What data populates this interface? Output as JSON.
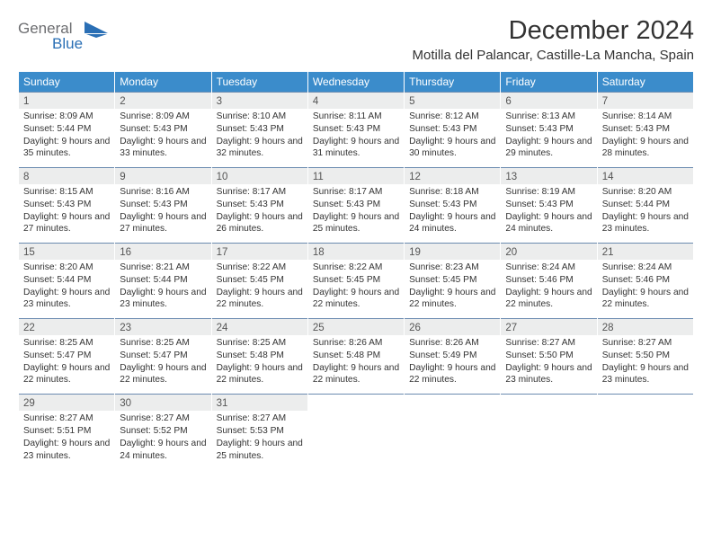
{
  "logo": {
    "text_top": "General",
    "text_bottom": "Blue",
    "gray": "#6d6e71",
    "blue": "#2a6fb5"
  },
  "title": "December 2024",
  "location": "Motilla del Palancar, Castille-La Mancha, Spain",
  "colors": {
    "header_bg": "#3b8ccb",
    "header_fg": "#ffffff",
    "daynum_bg": "#eceded",
    "row_divider": "#6b8bb0",
    "text": "#333333",
    "page_bg": "#ffffff"
  },
  "weekdays": [
    "Sunday",
    "Monday",
    "Tuesday",
    "Wednesday",
    "Thursday",
    "Friday",
    "Saturday"
  ],
  "weeks": [
    [
      {
        "n": "1",
        "sr": "8:09 AM",
        "ss": "5:44 PM",
        "dl": "9 hours and 35 minutes."
      },
      {
        "n": "2",
        "sr": "8:09 AM",
        "ss": "5:43 PM",
        "dl": "9 hours and 33 minutes."
      },
      {
        "n": "3",
        "sr": "8:10 AM",
        "ss": "5:43 PM",
        "dl": "9 hours and 32 minutes."
      },
      {
        "n": "4",
        "sr": "8:11 AM",
        "ss": "5:43 PM",
        "dl": "9 hours and 31 minutes."
      },
      {
        "n": "5",
        "sr": "8:12 AM",
        "ss": "5:43 PM",
        "dl": "9 hours and 30 minutes."
      },
      {
        "n": "6",
        "sr": "8:13 AM",
        "ss": "5:43 PM",
        "dl": "9 hours and 29 minutes."
      },
      {
        "n": "7",
        "sr": "8:14 AM",
        "ss": "5:43 PM",
        "dl": "9 hours and 28 minutes."
      }
    ],
    [
      {
        "n": "8",
        "sr": "8:15 AM",
        "ss": "5:43 PM",
        "dl": "9 hours and 27 minutes."
      },
      {
        "n": "9",
        "sr": "8:16 AM",
        "ss": "5:43 PM",
        "dl": "9 hours and 27 minutes."
      },
      {
        "n": "10",
        "sr": "8:17 AM",
        "ss": "5:43 PM",
        "dl": "9 hours and 26 minutes."
      },
      {
        "n": "11",
        "sr": "8:17 AM",
        "ss": "5:43 PM",
        "dl": "9 hours and 25 minutes."
      },
      {
        "n": "12",
        "sr": "8:18 AM",
        "ss": "5:43 PM",
        "dl": "9 hours and 24 minutes."
      },
      {
        "n": "13",
        "sr": "8:19 AM",
        "ss": "5:43 PM",
        "dl": "9 hours and 24 minutes."
      },
      {
        "n": "14",
        "sr": "8:20 AM",
        "ss": "5:44 PM",
        "dl": "9 hours and 23 minutes."
      }
    ],
    [
      {
        "n": "15",
        "sr": "8:20 AM",
        "ss": "5:44 PM",
        "dl": "9 hours and 23 minutes."
      },
      {
        "n": "16",
        "sr": "8:21 AM",
        "ss": "5:44 PM",
        "dl": "9 hours and 23 minutes."
      },
      {
        "n": "17",
        "sr": "8:22 AM",
        "ss": "5:45 PM",
        "dl": "9 hours and 22 minutes."
      },
      {
        "n": "18",
        "sr": "8:22 AM",
        "ss": "5:45 PM",
        "dl": "9 hours and 22 minutes."
      },
      {
        "n": "19",
        "sr": "8:23 AM",
        "ss": "5:45 PM",
        "dl": "9 hours and 22 minutes."
      },
      {
        "n": "20",
        "sr": "8:24 AM",
        "ss": "5:46 PM",
        "dl": "9 hours and 22 minutes."
      },
      {
        "n": "21",
        "sr": "8:24 AM",
        "ss": "5:46 PM",
        "dl": "9 hours and 22 minutes."
      }
    ],
    [
      {
        "n": "22",
        "sr": "8:25 AM",
        "ss": "5:47 PM",
        "dl": "9 hours and 22 minutes."
      },
      {
        "n": "23",
        "sr": "8:25 AM",
        "ss": "5:47 PM",
        "dl": "9 hours and 22 minutes."
      },
      {
        "n": "24",
        "sr": "8:25 AM",
        "ss": "5:48 PM",
        "dl": "9 hours and 22 minutes."
      },
      {
        "n": "25",
        "sr": "8:26 AM",
        "ss": "5:48 PM",
        "dl": "9 hours and 22 minutes."
      },
      {
        "n": "26",
        "sr": "8:26 AM",
        "ss": "5:49 PM",
        "dl": "9 hours and 22 minutes."
      },
      {
        "n": "27",
        "sr": "8:27 AM",
        "ss": "5:50 PM",
        "dl": "9 hours and 23 minutes."
      },
      {
        "n": "28",
        "sr": "8:27 AM",
        "ss": "5:50 PM",
        "dl": "9 hours and 23 minutes."
      }
    ],
    [
      {
        "n": "29",
        "sr": "8:27 AM",
        "ss": "5:51 PM",
        "dl": "9 hours and 23 minutes."
      },
      {
        "n": "30",
        "sr": "8:27 AM",
        "ss": "5:52 PM",
        "dl": "9 hours and 24 minutes."
      },
      {
        "n": "31",
        "sr": "8:27 AM",
        "ss": "5:53 PM",
        "dl": "9 hours and 25 minutes."
      },
      null,
      null,
      null,
      null
    ]
  ],
  "labels": {
    "sunrise": "Sunrise:",
    "sunset": "Sunset:",
    "daylight": "Daylight:"
  }
}
